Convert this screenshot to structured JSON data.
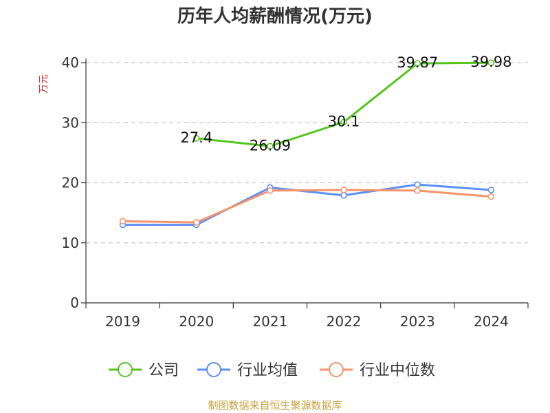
{
  "chart_data": {
    "type": "line",
    "title": "历年人均薪酬情况(万元)",
    "ylabel": "万元",
    "xlabel": "",
    "ylim": [
      0,
      40
    ],
    "yticks": [
      0,
      10,
      20,
      30,
      40
    ],
    "categories": [
      "2019",
      "2020",
      "2021",
      "2022",
      "2023",
      "2024"
    ],
    "grid": true,
    "legend_position": "bottom",
    "series": [
      {
        "name": "公司",
        "color": "#52c41a",
        "values": [
          null,
          27.4,
          26.09,
          30.1,
          39.87,
          39.98
        ],
        "labels": [
          "",
          "27.4",
          "26.09",
          "30.1",
          "39.87",
          "39.98"
        ]
      },
      {
        "name": "行业均值",
        "color": "#5b8ff9",
        "values": [
          13.0,
          13.0,
          19.2,
          17.9,
          19.7,
          18.8
        ]
      },
      {
        "name": "行业中位数",
        "color": "#f6936a",
        "values": [
          13.6,
          13.4,
          18.7,
          18.8,
          18.7,
          17.7
        ]
      }
    ]
  },
  "source": "制图数据来自恒生聚源数据库"
}
